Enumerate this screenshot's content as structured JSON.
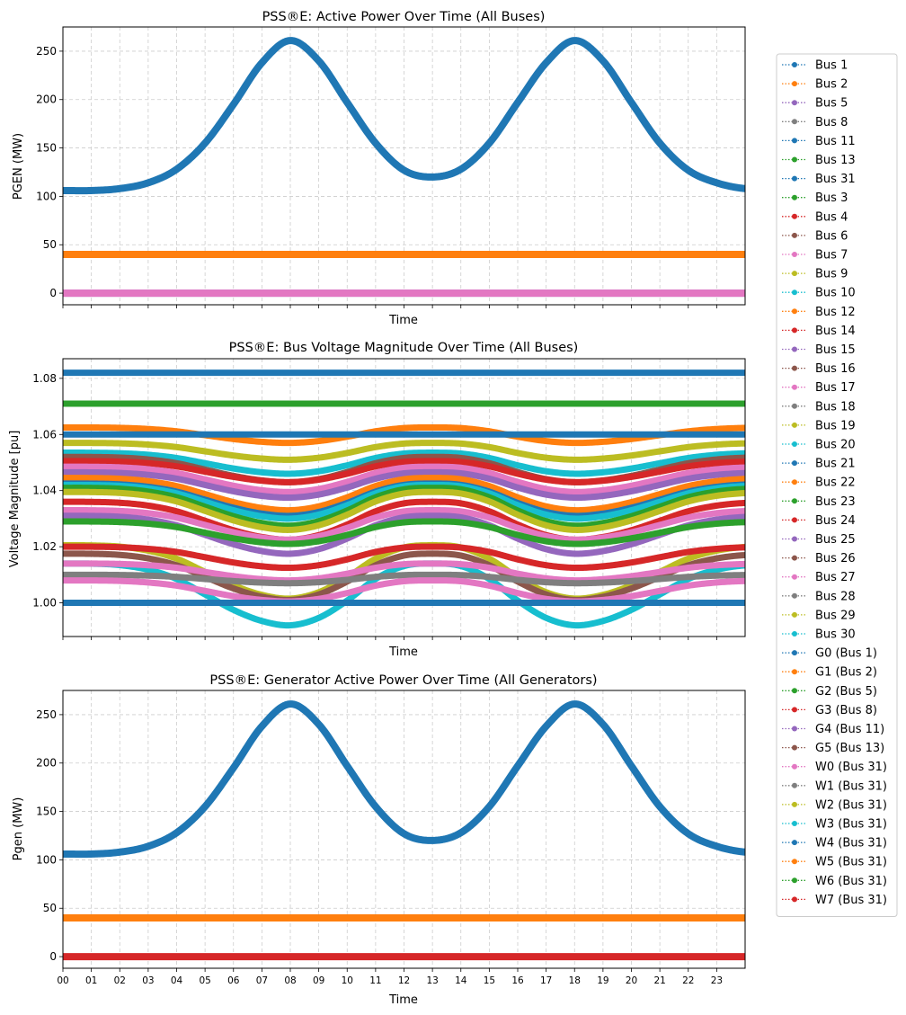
{
  "chart_data": [
    {
      "type": "line",
      "title": "PSS®E: Active Power Over Time (All Buses)",
      "xlabel": "Time",
      "ylabel": "PGEN (MW)",
      "xlim": [
        0,
        24
      ],
      "ylim": [
        -12,
        275
      ],
      "yticks": [
        0,
        50,
        100,
        150,
        200,
        250
      ],
      "grid": true,
      "series": [
        {
          "name": "Bus 1",
          "color": "#1f77b4",
          "x": [
            0,
            1,
            2,
            3,
            4,
            5,
            6,
            7,
            8,
            9,
            10,
            11,
            12,
            13,
            14,
            15,
            16,
            17,
            18,
            19,
            20,
            21,
            22,
            23,
            24
          ],
          "values": [
            106,
            106,
            108,
            114,
            128,
            155,
            195,
            238,
            261,
            240,
            197,
            155,
            127,
            120,
            128,
            155,
            197,
            238,
            261,
            240,
            197,
            155,
            127,
            114,
            108
          ]
        },
        {
          "name": "Bus 2",
          "color": "#ff7f0e",
          "x": [
            0,
            24
          ],
          "values": [
            40,
            40
          ]
        },
        {
          "name": "Bus 5",
          "color": "#9467bd",
          "x": [
            0,
            24
          ],
          "values": [
            0,
            0
          ]
        },
        {
          "name": "Bus 7",
          "color": "#e377c2",
          "x": [
            0,
            24
          ],
          "values": [
            0,
            0
          ]
        }
      ]
    },
    {
      "type": "line",
      "title": "PSS®E: Bus Voltage Magnitude Over Time (All Buses)",
      "xlabel": "Time",
      "ylabel": "Voltage Magnitude [pu]",
      "xlim": [
        0,
        24
      ],
      "ylim": [
        0.988,
        1.087
      ],
      "yticks": [
        1.0,
        1.02,
        1.04,
        1.06,
        1.08
      ],
      "grid": true,
      "series_profile": {
        "note": "dip depth per hour, multiplied by each series amp",
        "x": [
          0,
          1,
          2,
          3,
          4,
          5,
          6,
          7,
          8,
          9,
          10,
          11,
          12,
          13,
          14,
          15,
          16,
          17,
          18,
          19,
          20,
          21,
          22,
          23,
          24
        ],
        "depth": [
          0,
          0.002,
          0.025,
          0.1,
          0.25,
          0.5,
          0.75,
          0.93,
          1,
          0.88,
          0.6,
          0.25,
          0.04,
          0,
          0.04,
          0.25,
          0.6,
          0.88,
          1,
          0.93,
          0.75,
          0.5,
          0.25,
          0.1,
          0.03
        ]
      },
      "series": [
        {
          "name": "Bus 1",
          "color": "#1f77b4",
          "base": 1.082,
          "amp": 0
        },
        {
          "name": "Bus 2",
          "color": "#2ca02c",
          "base": 1.071,
          "amp": 0
        },
        {
          "name": "Bus 3",
          "color": "#ff7f0e",
          "base": 1.0625,
          "amp": 0.0055
        },
        {
          "name": "Bus 4",
          "color": "#1f77b4",
          "base": 1.06,
          "amp": 0
        },
        {
          "name": "Bus 6",
          "color": "#bcbd22",
          "base": 1.057,
          "amp": 0.006
        },
        {
          "name": "Bus 7",
          "color": "#17becf",
          "base": 1.0535,
          "amp": 0.0075
        },
        {
          "name": "Bus 9",
          "color": "#8c564b",
          "base": 1.052,
          "amp": 0.009
        },
        {
          "name": "Bus 10",
          "color": "#d62728",
          "base": 1.0505,
          "amp": 0.0075
        },
        {
          "name": "Bus 12",
          "color": "#e377c2",
          "base": 1.0485,
          "amp": 0.009
        },
        {
          "name": "Bus 14",
          "color": "#9467bd",
          "base": 1.0465,
          "amp": 0.009
        },
        {
          "name": "Bus 15",
          "color": "#ff7f0e",
          "base": 1.0445,
          "amp": 0.0115
        },
        {
          "name": "Bus 16",
          "color": "#1f77b4",
          "base": 1.0425,
          "amp": 0.0115
        },
        {
          "name": "Bus 17",
          "color": "#17becf",
          "base": 1.042,
          "amp": 0.012
        },
        {
          "name": "Bus 18",
          "color": "#2ca02c",
          "base": 1.041,
          "amp": 0.0135
        },
        {
          "name": "Bus 19",
          "color": "#bcbd22",
          "base": 1.0395,
          "amp": 0.0135
        },
        {
          "name": "Bus 20",
          "color": "#d62728",
          "base": 1.036,
          "amp": 0.0135
        },
        {
          "name": "Bus 21",
          "color": "#e377c2",
          "base": 1.033,
          "amp": 0.0105
        },
        {
          "name": "Bus 22",
          "color": "#9467bd",
          "base": 1.031,
          "amp": 0.0135
        },
        {
          "name": "Bus 23",
          "color": "#2ca02c",
          "base": 1.029,
          "amp": 0.008
        },
        {
          "name": "Bus 24",
          "color": "#bcbd22",
          "base": 1.0205,
          "amp": 0.019
        },
        {
          "name": "Bus 26",
          "color": "#d62728",
          "base": 1.02,
          "amp": 0.0075
        },
        {
          "name": "Bus 27",
          "color": "#8c564b",
          "base": 1.0175,
          "amp": 0.0165
        },
        {
          "name": "Bus 28",
          "color": "#17becf",
          "base": 1.014,
          "amp": 0.022
        },
        {
          "name": "Bus 29",
          "color": "#e377c2",
          "base": 1.014,
          "amp": 0.006
        },
        {
          "name": "Bus 30",
          "color": "#7f7f7f",
          "base": 1.01,
          "amp": 0.003
        },
        {
          "name": "Bus 31",
          "color": "#e377c2",
          "base": 1.008,
          "amp": 0.0075
        },
        {
          "name": "Bus 11",
          "color": "#1f77b4",
          "base": 1.0,
          "amp": 0
        }
      ]
    },
    {
      "type": "line",
      "title": "PSS®E: Generator Active Power Over Time (All Generators)",
      "xlabel": "Time",
      "ylabel": "Pgen (MW)",
      "xlim": [
        0,
        24
      ],
      "ylim": [
        -12,
        275
      ],
      "yticks": [
        0,
        50,
        100,
        150,
        200,
        250
      ],
      "xticks": [
        "00",
        "01",
        "02",
        "03",
        "04",
        "05",
        "06",
        "07",
        "08",
        "09",
        "10",
        "11",
        "12",
        "13",
        "14",
        "15",
        "16",
        "17",
        "18",
        "19",
        "20",
        "21",
        "22",
        "23"
      ],
      "grid": true,
      "series": [
        {
          "name": "G0 (Bus 1)",
          "color": "#1f77b4",
          "x": [
            0,
            1,
            2,
            3,
            4,
            5,
            6,
            7,
            8,
            9,
            10,
            11,
            12,
            13,
            14,
            15,
            16,
            17,
            18,
            19,
            20,
            21,
            22,
            23,
            24
          ],
          "values": [
            106,
            106,
            108,
            114,
            128,
            155,
            195,
            238,
            261,
            240,
            197,
            155,
            127,
            120,
            128,
            155,
            197,
            238,
            261,
            240,
            197,
            155,
            127,
            114,
            108
          ]
        },
        {
          "name": "G1 (Bus 2)",
          "color": "#ff7f0e",
          "x": [
            0,
            24
          ],
          "values": [
            40,
            40
          ]
        },
        {
          "name": "W7 (Bus 31)",
          "color": "#d62728",
          "x": [
            0,
            24
          ],
          "values": [
            0,
            0
          ]
        }
      ]
    }
  ],
  "legend": {
    "placement": "right-outside",
    "entries": [
      {
        "label": "Bus 1",
        "color": "#1f77b4"
      },
      {
        "label": "Bus 2",
        "color": "#ff7f0e"
      },
      {
        "label": "Bus 5",
        "color": "#9467bd"
      },
      {
        "label": "Bus 8",
        "color": "#7f7f7f"
      },
      {
        "label": "Bus 11",
        "color": "#1f77b4"
      },
      {
        "label": "Bus 13",
        "color": "#2ca02c"
      },
      {
        "label": "Bus 31",
        "color": "#1f77b4"
      },
      {
        "label": "Bus 3",
        "color": "#2ca02c"
      },
      {
        "label": "Bus 4",
        "color": "#d62728"
      },
      {
        "label": "Bus 6",
        "color": "#8c564b"
      },
      {
        "label": "Bus 7",
        "color": "#e377c2"
      },
      {
        "label": "Bus 9",
        "color": "#bcbd22"
      },
      {
        "label": "Bus 10",
        "color": "#17becf"
      },
      {
        "label": "Bus 12",
        "color": "#ff7f0e"
      },
      {
        "label": "Bus 14",
        "color": "#d62728"
      },
      {
        "label": "Bus 15",
        "color": "#9467bd"
      },
      {
        "label": "Bus 16",
        "color": "#8c564b"
      },
      {
        "label": "Bus 17",
        "color": "#e377c2"
      },
      {
        "label": "Bus 18",
        "color": "#7f7f7f"
      },
      {
        "label": "Bus 19",
        "color": "#bcbd22"
      },
      {
        "label": "Bus 20",
        "color": "#17becf"
      },
      {
        "label": "Bus 21",
        "color": "#1f77b4"
      },
      {
        "label": "Bus 22",
        "color": "#ff7f0e"
      },
      {
        "label": "Bus 23",
        "color": "#2ca02c"
      },
      {
        "label": "Bus 24",
        "color": "#d62728"
      },
      {
        "label": "Bus 25",
        "color": "#9467bd"
      },
      {
        "label": "Bus 26",
        "color": "#8c564b"
      },
      {
        "label": "Bus 27",
        "color": "#e377c2"
      },
      {
        "label": "Bus 28",
        "color": "#7f7f7f"
      },
      {
        "label": "Bus 29",
        "color": "#bcbd22"
      },
      {
        "label": "Bus 30",
        "color": "#17becf"
      },
      {
        "label": "G0 (Bus 1)",
        "color": "#1f77b4"
      },
      {
        "label": "G1 (Bus 2)",
        "color": "#ff7f0e"
      },
      {
        "label": "G2 (Bus 5)",
        "color": "#2ca02c"
      },
      {
        "label": "G3 (Bus 8)",
        "color": "#d62728"
      },
      {
        "label": "G4 (Bus 11)",
        "color": "#9467bd"
      },
      {
        "label": "G5 (Bus 13)",
        "color": "#8c564b"
      },
      {
        "label": "W0 (Bus 31)",
        "color": "#e377c2"
      },
      {
        "label": "W1 (Bus 31)",
        "color": "#7f7f7f"
      },
      {
        "label": "W2 (Bus 31)",
        "color": "#bcbd22"
      },
      {
        "label": "W3 (Bus 31)",
        "color": "#17becf"
      },
      {
        "label": "W4 (Bus 31)",
        "color": "#1f77b4"
      },
      {
        "label": "W5 (Bus 31)",
        "color": "#ff7f0e"
      },
      {
        "label": "W6 (Bus 31)",
        "color": "#2ca02c"
      },
      {
        "label": "W7 (Bus 31)",
        "color": "#d62728"
      }
    ]
  }
}
